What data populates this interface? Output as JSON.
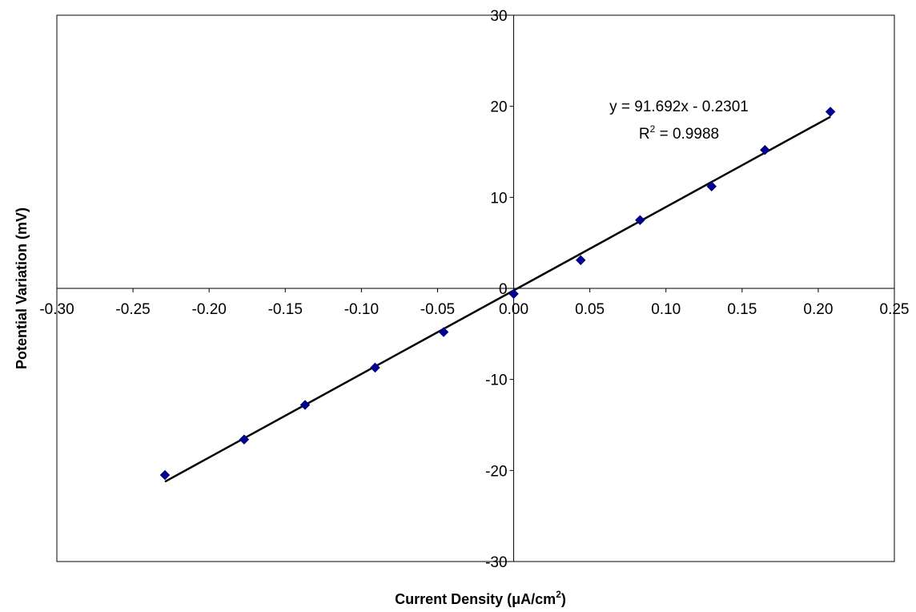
{
  "chart_data": {
    "type": "scatter",
    "title": "",
    "xlabel": "Current Density (μA/cm",
    "xlabel_sup": "2",
    "xlabel_end": ")",
    "ylabel": "Potential Variation (mV)",
    "xlim": [
      -0.3,
      0.25
    ],
    "ylim": [
      -30,
      30
    ],
    "x_ticks": [
      -0.3,
      -0.25,
      -0.2,
      -0.15,
      -0.1,
      -0.05,
      0.0,
      0.05,
      0.1,
      0.15,
      0.2,
      0.25
    ],
    "x_tick_labels": [
      "-0.30",
      "-0.25",
      "-0.20",
      "-0.15",
      "-0.10",
      "-0.05",
      "0.00",
      "0.05",
      "0.10",
      "0.15",
      "0.20",
      "0.25"
    ],
    "y_ticks": [
      -30,
      -20,
      -10,
      0,
      10,
      20,
      30
    ],
    "y_tick_labels": [
      "-30",
      "-20",
      "-10",
      "0",
      "10",
      "20",
      "30"
    ],
    "grid": false,
    "legend": "none",
    "series": [
      {
        "marker": "diamond",
        "color": "#00008B",
        "x": [
          -0.229,
          -0.177,
          -0.137,
          -0.091,
          -0.046,
          0.0,
          0.044,
          0.083,
          0.13,
          0.165,
          0.208
        ],
        "y": [
          -20.5,
          -16.6,
          -12.8,
          -8.7,
          -4.8,
          -0.6,
          3.1,
          7.5,
          11.2,
          15.2,
          19.4
        ]
      }
    ],
    "trendline": {
      "slope": 91.692,
      "intercept": -0.2301,
      "x_range": [
        -0.229,
        0.208
      ],
      "color": "#000000"
    },
    "annotations": {
      "equation": "y = 91.692x - 0.2301",
      "r2_prefix": "R",
      "r2_sup": "2",
      "r2_value": " = 0.9988"
    }
  }
}
